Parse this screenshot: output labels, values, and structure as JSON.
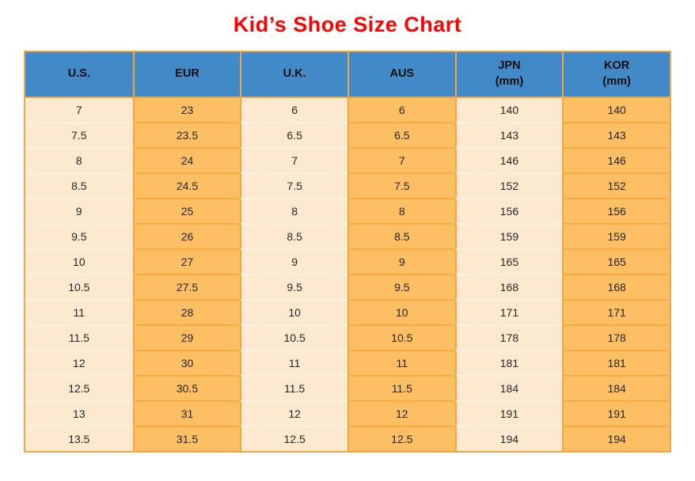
{
  "chart_data": {
    "type": "table",
    "title": "Kid’s Shoe Size Chart",
    "columns": [
      {
        "label": "U.S.",
        "sub": ""
      },
      {
        "label": "EUR",
        "sub": ""
      },
      {
        "label": "U.K.",
        "sub": ""
      },
      {
        "label": "AUS",
        "sub": ""
      },
      {
        "label": "JPN",
        "sub": "(mm)"
      },
      {
        "label": "KOR",
        "sub": "(mm)"
      }
    ],
    "rows": [
      [
        "7",
        "23",
        "6",
        "6",
        "140",
        "140"
      ],
      [
        "7.5",
        "23.5",
        "6.5",
        "6.5",
        "143",
        "143"
      ],
      [
        "8",
        "24",
        "7",
        "7",
        "146",
        "146"
      ],
      [
        "8.5",
        "24.5",
        "7.5",
        "7.5",
        "152",
        "152"
      ],
      [
        "9",
        "25",
        "8",
        "8",
        "156",
        "156"
      ],
      [
        "9.5",
        "26",
        "8.5",
        "8.5",
        "159",
        "159"
      ],
      [
        "10",
        "27",
        "9",
        "9",
        "165",
        "165"
      ],
      [
        "10.5",
        "27.5",
        "9.5",
        "9.5",
        "168",
        "168"
      ],
      [
        "11",
        "28",
        "10",
        "10",
        "171",
        "171"
      ],
      [
        "11.5",
        "29",
        "10.5",
        "10.5",
        "178",
        "178"
      ],
      [
        "12",
        "30",
        "11",
        "11",
        "181",
        "181"
      ],
      [
        "12.5",
        "30.5",
        "11.5",
        "11.5",
        "184",
        "184"
      ],
      [
        "13",
        "31",
        "12",
        "12",
        "191",
        "191"
      ],
      [
        "13.5",
        "31.5",
        "12.5",
        "12.5",
        "194",
        "194"
      ]
    ],
    "layout": {
      "column_banding": [
        "light",
        "orange",
        "light",
        "orange",
        "light",
        "orange"
      ],
      "legend_position": "none",
      "grid": "on"
    }
  },
  "colors": {
    "title_red": "#FF0000",
    "header_blue": "#4289C8",
    "header_text": "#0D0D0D",
    "band_light": "#FCE9CF",
    "band_orange": "#FCBF63",
    "grid_orange": "#F2A73E",
    "row_line_light": "#FDF3E3",
    "row_line_orange": "#F6AD43",
    "outer_border": "#EFA64B",
    "cell_text": "#262626"
  }
}
